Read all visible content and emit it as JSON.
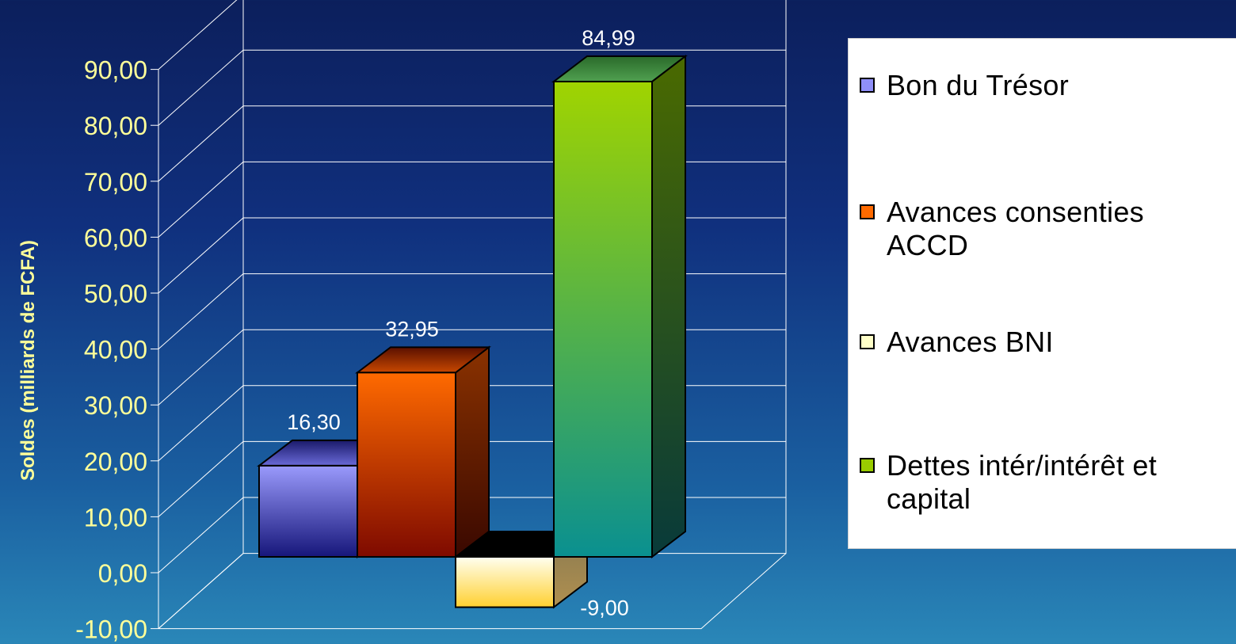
{
  "chart_data": {
    "type": "bar",
    "ylabel": "Soldes (milliards de FCFA)",
    "ylim": [
      -10,
      90
    ],
    "yticks": [
      -10,
      0,
      10,
      20,
      30,
      40,
      50,
      60,
      70,
      80,
      90
    ],
    "ytick_labels": [
      "-10,00",
      "0,00",
      "10,00",
      "20,00",
      "30,00",
      "40,00",
      "50,00",
      "60,00",
      "70,00",
      "80,00",
      "90,00"
    ],
    "grid": true,
    "legend_position": "right",
    "series": [
      {
        "name": "Bon du Trésor",
        "value": 16.3,
        "label": "16,30",
        "color": "#8f8ff8"
      },
      {
        "name": "Avances consenties ACCD",
        "value": 32.95,
        "label": "32,95",
        "color": "#ff6a00"
      },
      {
        "name": "Avances BNI",
        "value": -9.0,
        "label": "-9,00",
        "color": "#ffffc8"
      },
      {
        "name": "Dettes intér/intérêt et capital",
        "value": 84.99,
        "label": "84,99",
        "color": "#99cc00"
      }
    ]
  },
  "legend": {
    "items": [
      {
        "lines": [
          "Bon du Trésor"
        ]
      },
      {
        "lines": [
          "Avances consenties",
          "ACCD"
        ]
      },
      {
        "lines": [
          "Avances BNI"
        ]
      },
      {
        "lines": [
          "Dettes intér/intérêt et",
          "capital"
        ]
      }
    ]
  },
  "colors": {
    "axis_text": "#ffff99",
    "grid": "#ffffff",
    "value_label": "#ffffff"
  }
}
